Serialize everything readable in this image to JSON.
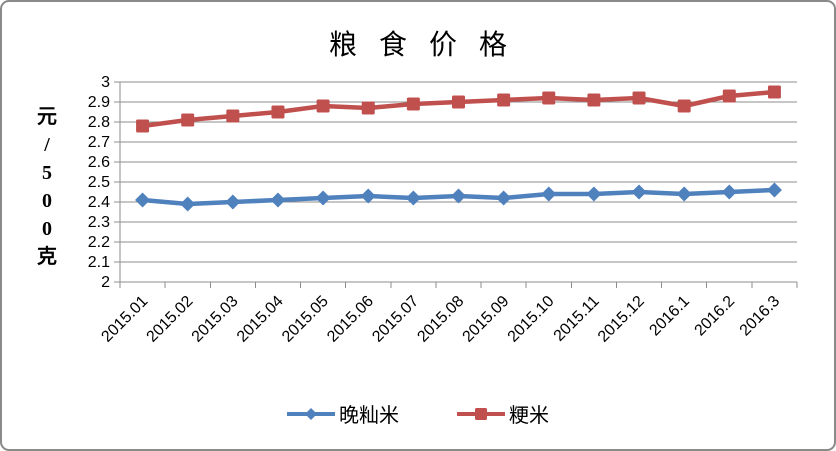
{
  "chart_data": {
    "type": "line",
    "title": "粮食价格",
    "ylabel": "元/500克",
    "xlabel": "",
    "categories": [
      "2015.01",
      "2015.02",
      "2015.03",
      "2015.04",
      "2015.05",
      "2015.06",
      "2015.07",
      "2015.08",
      "2015.09",
      "2015.10",
      "2015.11",
      "2015.12",
      "2016.1",
      "2016.2",
      "2016.3"
    ],
    "series": [
      {
        "name": "晚籼米",
        "color": "#4F81BD",
        "marker": "diamond",
        "values": [
          2.41,
          2.39,
          2.4,
          2.41,
          2.42,
          2.43,
          2.42,
          2.43,
          2.42,
          2.44,
          2.44,
          2.45,
          2.44,
          2.45,
          2.46
        ]
      },
      {
        "name": "粳米",
        "color": "#C0504D",
        "marker": "square",
        "values": [
          2.78,
          2.81,
          2.83,
          2.85,
          2.88,
          2.87,
          2.89,
          2.9,
          2.91,
          2.92,
          2.91,
          2.92,
          2.88,
          2.93,
          2.95
        ]
      }
    ],
    "ylim": [
      2,
      3
    ],
    "ytick_step": 0.1,
    "ytick_labels": [
      "2",
      "2.1",
      "2.2",
      "2.3",
      "2.4",
      "2.5",
      "2.6",
      "2.7",
      "2.8",
      "2.9",
      "3"
    ],
    "grid": true,
    "legend_position": "bottom",
    "colors": {
      "grid": "#8c8c8c",
      "axis": "#8c8c8c",
      "text": "#000000",
      "frame_border": "#8a8a8a",
      "background": "#ffffff"
    }
  }
}
